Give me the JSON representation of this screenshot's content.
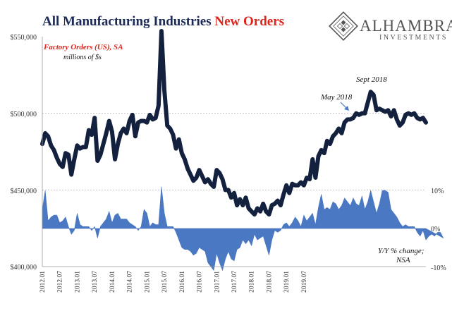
{
  "title": {
    "part1": "All Manufacturing Industries ",
    "part2": "New Orders"
  },
  "brand": {
    "name": "ALHAMBRA",
    "sub": "INVESTMENTS"
  },
  "colors": {
    "title_navy": "#1b2a57",
    "title_red": "#e0241b",
    "level_line": "#13213f",
    "yoy_fill": "#4a78c2",
    "series_label": "#e0241b",
    "grid": "#bbbbbb",
    "brand": "#555555"
  },
  "chart_data": {
    "type": "line",
    "series": [
      {
        "name": "Factory Orders (US), SA",
        "units": "millions of $s",
        "axis": "left",
        "style": "line",
        "values": [
          480000,
          487000,
          485000,
          479000,
          476000,
          471000,
          467000,
          465000,
          474000,
          473000,
          460000,
          470000,
          479000,
          477000,
          478000,
          478000,
          489000,
          486000,
          497000,
          469000,
          473000,
          480000,
          487000,
          495000,
          488000,
          470000,
          480000,
          487000,
          490000,
          487000,
          495000,
          499000,
          485000,
          494000,
          495000,
          495000,
          494000,
          499000,
          496000,
          497000,
          505000,
          555000,
          515000,
          492000,
          490000,
          486000,
          477000,
          483000,
          474000,
          470000,
          464000,
          460000,
          456000,
          458000,
          463000,
          459000,
          455000,
          457000,
          454000,
          452000,
          463000,
          461000,
          457000,
          450000,
          450000,
          445000,
          448000,
          440000,
          444000,
          440000,
          445000,
          438000,
          436000,
          434000,
          438000,
          436000,
          441000,
          436000,
          434000,
          440000,
          441000,
          443000,
          440000,
          447000,
          453000,
          448000,
          454000,
          453000,
          453000,
          455000,
          453000,
          458000,
          457000,
          470000,
          458000,
          472000,
          476000,
          474000,
          482000,
          480000,
          485000,
          487000,
          490000,
          487000,
          494000,
          496000,
          496000,
          497000,
          500000,
          499000,
          500000,
          500000,
          507000,
          514000,
          512000,
          502000,
          503000,
          502000,
          501000,
          502000,
          498000,
          502000,
          496000,
          492000,
          494000,
          499000,
          500000,
          499000,
          500000,
          497000,
          496000,
          497000,
          494000
        ]
      },
      {
        "name": "Y/Y % change; NSA",
        "axis": "right",
        "style": "area",
        "values": [
          5,
          10,
          2,
          3,
          3.5,
          3.5,
          1.5,
          2,
          3,
          0.5,
          -1.5,
          -0.5,
          4,
          1,
          0.5,
          0.5,
          0.5,
          -0.5,
          0.5,
          -2.5,
          0.5,
          1.5,
          2.5,
          4.5,
          1.5,
          3.5,
          4,
          2.5,
          2.5,
          2.5,
          1.5,
          1,
          0.5,
          -0.5,
          0.5,
          5,
          4,
          0.5,
          1.5,
          1,
          1,
          11,
          4,
          0.5,
          0.5,
          0.5,
          -1,
          -3,
          -5,
          -5.5,
          -5.5,
          -6,
          -7,
          -6.5,
          -5,
          -5.5,
          -6,
          -9,
          -10,
          -11,
          -6.5,
          -9,
          -11,
          -8,
          -6,
          -8,
          -8.5,
          -5.5,
          -5,
          -3,
          -4,
          -3,
          -4.5,
          -1.5,
          -3,
          -2.5,
          -2,
          -4.5,
          -7,
          -3,
          -0.5,
          -1,
          -0.5,
          1,
          1.5,
          0.5,
          1.5,
          3,
          2,
          0.5,
          3.5,
          2,
          3,
          4,
          1,
          5.5,
          9,
          5,
          5.5,
          5,
          7,
          6.5,
          5,
          6,
          8,
          7,
          6,
          8,
          6.5,
          6,
          8.5,
          5,
          7,
          10,
          7,
          4,
          6.5,
          10,
          10,
          9.5,
          5,
          4,
          3,
          1.5,
          0.5,
          1,
          0.5,
          0.5,
          0.5,
          -1,
          -2,
          -0.5,
          -3,
          -2,
          -1.5,
          -2,
          -1,
          -1,
          -2.5
        ]
      }
    ],
    "x_start": "2012-01",
    "x_tick_labels": [
      "2012.01",
      "2012.07",
      "2013.01",
      "2013.07",
      "2014.01",
      "2014.07",
      "2015.01",
      "2015.07",
      "2016.01",
      "2016.07",
      "2017.01",
      "2017.07",
      "2018.01",
      "2018.07",
      "2019.01",
      "2019.07"
    ],
    "left_axis": {
      "ticks": [
        "$400,000",
        "$450,000",
        "$500,000",
        "$550,000"
      ],
      "range": [
        400000,
        550000
      ]
    },
    "right_axis": {
      "ticks": [
        "10%",
        "0%",
        "-10%"
      ],
      "range": [
        -10,
        10
      ]
    },
    "annotations": [
      {
        "text": "Sept 2018"
      },
      {
        "text": "May 2018"
      },
      {
        "text": "Y/Y % change;"
      },
      {
        "text": "NSA"
      }
    ],
    "gridlines": true
  }
}
